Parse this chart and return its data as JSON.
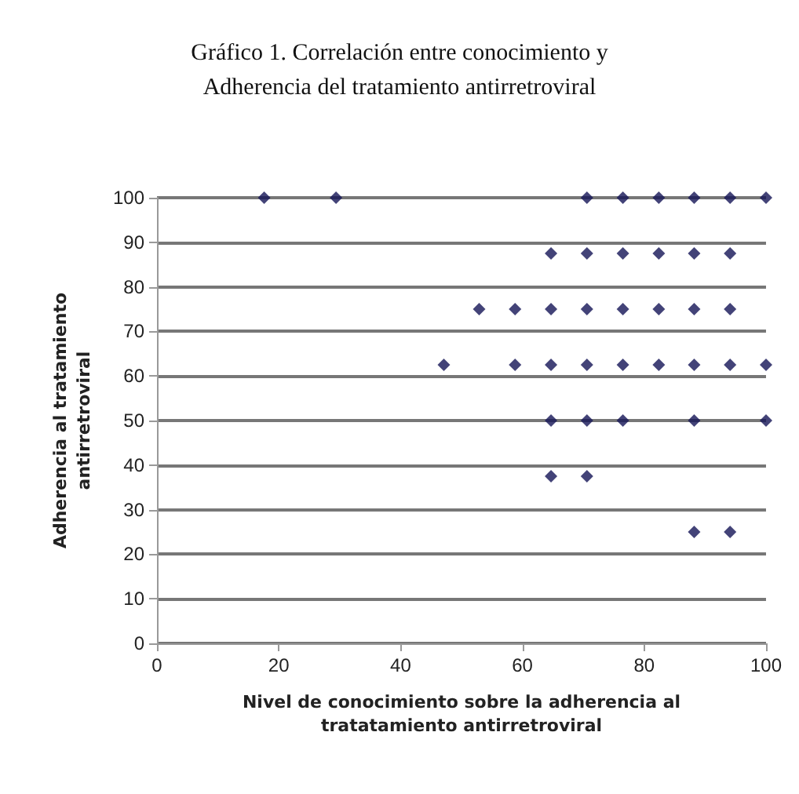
{
  "chart_data": {
    "type": "scatter",
    "title": "Gráfico 1. Correlación entre conocimiento y\nAdherencia del tratamiento antirretroviral",
    "xlabel": "Nivel de conocimiento sobre la adherencia al\ntratatamiento antirretroviral",
    "ylabel": "Adherencia al tratamiento\nantirretroviral",
    "x": [
      17.6,
      29.4,
      70.6,
      76.5,
      82.4,
      88.2,
      94.1,
      100,
      64.7,
      70.6,
      76.5,
      82.4,
      88.2,
      94.1,
      52.9,
      58.8,
      64.7,
      70.6,
      76.5,
      82.4,
      88.2,
      94.1,
      47.1,
      58.8,
      64.7,
      70.6,
      76.5,
      82.4,
      88.2,
      94.1,
      100,
      64.7,
      70.6,
      76.5,
      88.2,
      100,
      64.7,
      70.6,
      88.2,
      94.1
    ],
    "values": [
      100,
      100,
      100,
      100,
      100,
      100,
      100,
      100,
      87.5,
      87.5,
      87.5,
      87.5,
      87.5,
      87.5,
      75,
      75,
      75,
      75,
      75,
      75,
      75,
      75,
      62.5,
      62.5,
      62.5,
      62.5,
      62.5,
      62.5,
      62.5,
      62.5,
      62.5,
      50,
      50,
      50,
      50,
      50,
      37.5,
      37.5,
      25,
      25
    ],
    "color": "#141456",
    "marker": "diamond",
    "grid": "y",
    "xlim": [
      0,
      100
    ],
    "xticks": [
      0,
      20,
      40,
      60,
      80,
      100
    ],
    "ylim": [
      0,
      100
    ],
    "yticks": [
      0,
      10,
      20,
      30,
      40,
      50,
      60,
      70,
      80,
      90,
      100
    ]
  }
}
